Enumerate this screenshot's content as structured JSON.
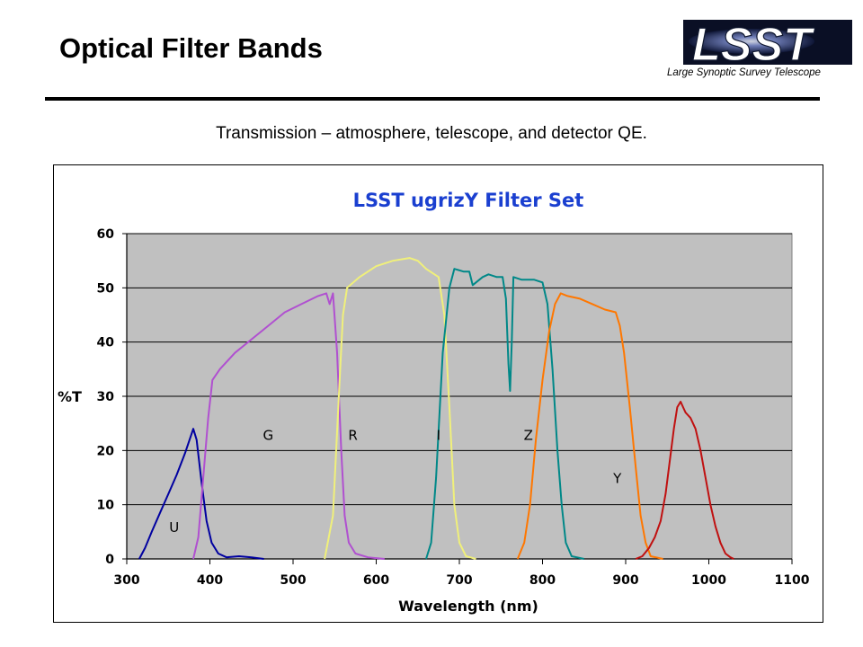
{
  "slide": {
    "title": "Optical Filter Bands",
    "subtitle": "Transmission – atmosphere, telescope, and detector QE.",
    "logo": {
      "text": "LSST",
      "tagline": "Large Synoptic Survey Telescope",
      "icon": "lsst-logo-icon"
    }
  },
  "chart_data": {
    "type": "line",
    "title": "LSST ugrizY Filter Set",
    "xlabel": "Wavelength (nm)",
    "ylabel": "%T",
    "xlim": [
      300,
      1100
    ],
    "ylim": [
      0,
      60
    ],
    "xticks": [
      300,
      400,
      500,
      600,
      700,
      800,
      900,
      1000,
      1100
    ],
    "yticks": [
      0,
      10,
      20,
      30,
      40,
      50,
      60
    ],
    "grid": {
      "horizontal": true,
      "vertical": false
    },
    "plot_background": "#c0c0c0",
    "legend": "none",
    "series": [
      {
        "name": "U",
        "color": "#0000a0",
        "label_at": [
          357,
          5
        ],
        "points": [
          [
            315,
            0
          ],
          [
            322,
            2
          ],
          [
            330,
            5
          ],
          [
            340,
            8.5
          ],
          [
            350,
            12
          ],
          [
            360,
            15.5
          ],
          [
            370,
            19.5
          ],
          [
            380,
            24
          ],
          [
            384,
            22
          ],
          [
            390,
            14
          ],
          [
            396,
            7
          ],
          [
            402,
            3
          ],
          [
            410,
            1
          ],
          [
            420,
            0.3
          ],
          [
            435,
            0.5
          ],
          [
            450,
            0.3
          ],
          [
            465,
            0
          ]
        ]
      },
      {
        "name": "G",
        "color": "#b050d0",
        "label_at": [
          470,
          22
        ],
        "points": [
          [
            380,
            0
          ],
          [
            386,
            4
          ],
          [
            392,
            15
          ],
          [
            398,
            26
          ],
          [
            403,
            33
          ],
          [
            412,
            35
          ],
          [
            430,
            38
          ],
          [
            450,
            40.5
          ],
          [
            470,
            43
          ],
          [
            490,
            45.5
          ],
          [
            510,
            47
          ],
          [
            530,
            48.5
          ],
          [
            540,
            49
          ],
          [
            544,
            47
          ],
          [
            548,
            49
          ],
          [
            553,
            38
          ],
          [
            558,
            20
          ],
          [
            562,
            8
          ],
          [
            567,
            3
          ],
          [
            575,
            1
          ],
          [
            590,
            0.3
          ],
          [
            610,
            0
          ]
        ]
      },
      {
        "name": "R",
        "color": "#f0f07a",
        "label_at": [
          572,
          22
        ],
        "points": [
          [
            538,
            0
          ],
          [
            548,
            8
          ],
          [
            555,
            30
          ],
          [
            560,
            45
          ],
          [
            565,
            50
          ],
          [
            580,
            52
          ],
          [
            600,
            54
          ],
          [
            620,
            55
          ],
          [
            640,
            55.5
          ],
          [
            650,
            55
          ],
          [
            660,
            53.5
          ],
          [
            675,
            52
          ],
          [
            682,
            45
          ],
          [
            688,
            28
          ],
          [
            694,
            10
          ],
          [
            700,
            3
          ],
          [
            708,
            0.5
          ],
          [
            720,
            0
          ]
        ]
      },
      {
        "name": "I",
        "color": "#008888",
        "label_at": [
          675,
          22
        ],
        "points": [
          [
            660,
            0
          ],
          [
            666,
            3
          ],
          [
            672,
            15
          ],
          [
            680,
            38
          ],
          [
            688,
            50
          ],
          [
            694,
            53.5
          ],
          [
            705,
            53
          ],
          [
            712,
            53
          ],
          [
            716,
            50.5
          ],
          [
            720,
            51
          ],
          [
            728,
            52
          ],
          [
            735,
            52.5
          ],
          [
            745,
            52
          ],
          [
            752,
            52
          ],
          [
            756,
            48
          ],
          [
            759,
            36
          ],
          [
            761,
            31
          ],
          [
            763,
            40
          ],
          [
            765,
            52
          ],
          [
            775,
            51.5
          ],
          [
            790,
            51.5
          ],
          [
            800,
            51
          ],
          [
            806,
            47
          ],
          [
            812,
            35
          ],
          [
            818,
            20
          ],
          [
            823,
            10
          ],
          [
            828,
            3
          ],
          [
            835,
            0.5
          ],
          [
            850,
            0
          ]
        ]
      },
      {
        "name": "Z",
        "color": "#ff7700",
        "label_at": [
          783,
          22
        ],
        "points": [
          [
            770,
            0
          ],
          [
            778,
            3
          ],
          [
            785,
            10
          ],
          [
            792,
            22
          ],
          [
            800,
            33
          ],
          [
            808,
            42
          ],
          [
            815,
            47
          ],
          [
            822,
            49
          ],
          [
            830,
            48.5
          ],
          [
            845,
            48
          ],
          [
            860,
            47
          ],
          [
            875,
            46
          ],
          [
            888,
            45.5
          ],
          [
            893,
            43
          ],
          [
            898,
            38
          ],
          [
            905,
            28
          ],
          [
            912,
            17
          ],
          [
            918,
            8
          ],
          [
            924,
            3
          ],
          [
            930,
            0.5
          ],
          [
            945,
            0
          ]
        ]
      },
      {
        "name": "Y",
        "color": "#c01010",
        "label_at": [
          890,
          14
        ],
        "points": [
          [
            912,
            0
          ],
          [
            920,
            0.5
          ],
          [
            928,
            2
          ],
          [
            935,
            4
          ],
          [
            942,
            7
          ],
          [
            948,
            12
          ],
          [
            953,
            18
          ],
          [
            958,
            24
          ],
          [
            962,
            28
          ],
          [
            966,
            29
          ],
          [
            972,
            27
          ],
          [
            978,
            26
          ],
          [
            984,
            24
          ],
          [
            990,
            20
          ],
          [
            996,
            15
          ],
          [
            1002,
            10
          ],
          [
            1008,
            6
          ],
          [
            1014,
            3
          ],
          [
            1020,
            1
          ],
          [
            1026,
            0.3
          ],
          [
            1030,
            0
          ]
        ]
      }
    ]
  }
}
